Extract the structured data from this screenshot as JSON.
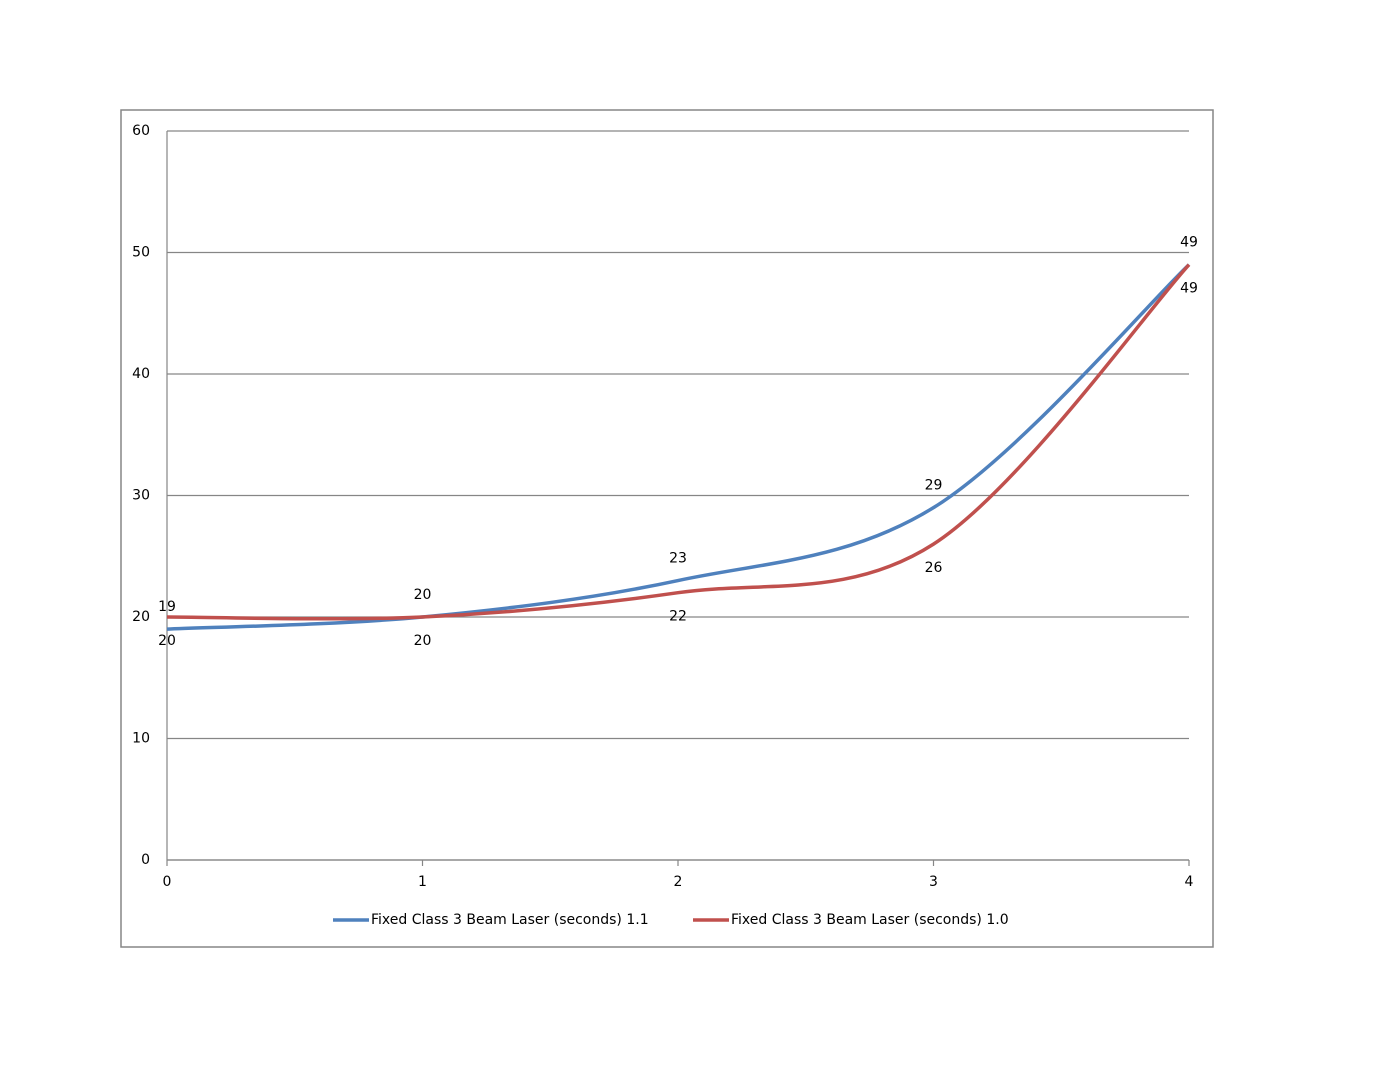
{
  "chart_data": {
    "type": "line",
    "x": [
      0,
      1,
      2,
      3,
      4
    ],
    "series": [
      {
        "name": "Fixed Class 3 Beam Laser (seconds) 1.1",
        "color": "#4f81bd",
        "values": [
          19,
          20,
          23,
          29,
          49
        ]
      },
      {
        "name": "Fixed Class 3 Beam Laser (seconds) 1.0",
        "color": "#c0504d",
        "values": [
          20,
          20,
          22,
          26,
          49
        ]
      }
    ],
    "xlim": [
      0,
      4
    ],
    "xticks": [
      0,
      1,
      2,
      3,
      4
    ],
    "ylim": [
      0,
      60
    ],
    "yticks": [
      0,
      10,
      20,
      30,
      40,
      50,
      60
    ],
    "grid": true,
    "smooth": true,
    "data_labels": true,
    "legend": "bottom"
  }
}
